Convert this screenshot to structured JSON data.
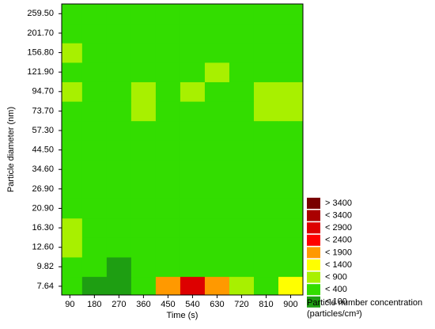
{
  "chart_data": {
    "type": "contour",
    "x_label": "Time (s)",
    "y_label": "Particle diameter (nm)",
    "xlim": [
      60,
      945
    ],
    "xticks": [
      90,
      180,
      270,
      360,
      450,
      540,
      630,
      720,
      810,
      900
    ],
    "x": [
      90,
      180,
      270,
      360,
      450,
      540,
      630,
      720,
      810,
      900
    ],
    "y_categories": [
      "7.64",
      "9.82",
      "12.60",
      "16.30",
      "20.90",
      "26.90",
      "34.60",
      "44.50",
      "57.30",
      "73.70",
      "94.70",
      "121.90",
      "156.80",
      "201.70",
      "259.50"
    ],
    "z": [
      [
        300,
        80,
        80,
        200,
        1400,
        2400,
        1400,
        600,
        200,
        900
      ],
      [
        300,
        150,
        90,
        150,
        200,
        150,
        250,
        300,
        200,
        300
      ],
      [
        600,
        300,
        300,
        300,
        250,
        200,
        250,
        300,
        250,
        250
      ],
      [
        700,
        350,
        300,
        300,
        250,
        250,
        300,
        300,
        300,
        300
      ],
      [
        300,
        300,
        300,
        300,
        300,
        250,
        300,
        300,
        300,
        300
      ],
      [
        300,
        300,
        250,
        300,
        300,
        300,
        300,
        300,
        250,
        300
      ],
      [
        300,
        300,
        300,
        300,
        300,
        300,
        300,
        250,
        300,
        300
      ],
      [
        300,
        300,
        300,
        300,
        300,
        300,
        300,
        300,
        300,
        300
      ],
      [
        300,
        300,
        300,
        300,
        300,
        300,
        300,
        300,
        300,
        350
      ],
      [
        300,
        300,
        300,
        600,
        300,
        300,
        300,
        300,
        500,
        700
      ],
      [
        700,
        300,
        300,
        700,
        300,
        700,
        300,
        300,
        700,
        800
      ],
      [
        300,
        300,
        300,
        300,
        300,
        300,
        700,
        300,
        300,
        300
      ],
      [
        600,
        300,
        300,
        300,
        300,
        300,
        300,
        300,
        300,
        300
      ],
      [
        300,
        300,
        300,
        300,
        300,
        300,
        300,
        300,
        300,
        300
      ],
      [
        300,
        300,
        250,
        300,
        300,
        300,
        300,
        300,
        300,
        300
      ]
    ],
    "bounds": [
      100,
      400,
      900,
      1400,
      1900,
      2400,
      2900,
      3400
    ],
    "levels": [
      {
        "label": "< 100",
        "color": "#1e9e12"
      },
      {
        "label": "< 400",
        "color": "#33dd00"
      },
      {
        "label": "< 900",
        "color": "#a8f000"
      },
      {
        "label": "< 1400",
        "color": "#ffff00"
      },
      {
        "label": "< 1900",
        "color": "#ff9900"
      },
      {
        "label": "< 2400",
        "color": "#ff0000"
      },
      {
        "label": "< 2900",
        "color": "#dd0000"
      },
      {
        "label": "< 3400",
        "color": "#aa0000"
      },
      {
        "label": "> 3400",
        "color": "#7a0000"
      }
    ],
    "legend_title": [
      "Particle number concentration",
      "(particles/cm³)"
    ]
  }
}
